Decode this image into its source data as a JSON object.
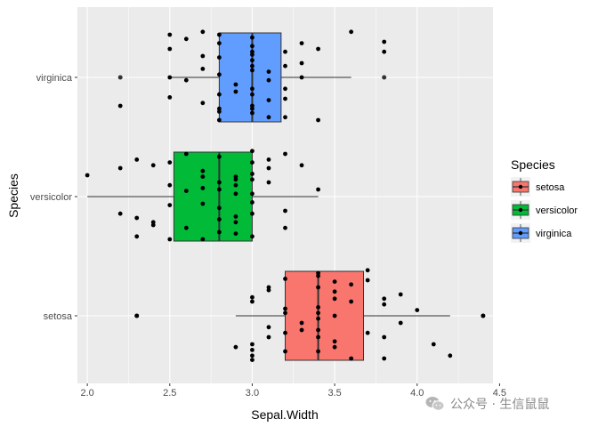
{
  "chart_data": {
    "type": "boxplot",
    "orientation": "horizontal",
    "title": "",
    "xlabel": "Sepal.Width",
    "ylabel": "Species",
    "xlim": [
      1.94,
      4.46
    ],
    "x_ticks": [
      2.0,
      2.5,
      3.0,
      3.5,
      4.0,
      4.5
    ],
    "x_tick_labels": [
      "2.0",
      "2.5",
      "3.0",
      "3.5",
      "4.0",
      "4.5"
    ],
    "categories": [
      "setosa",
      "versicolor",
      "virginica"
    ],
    "colors": {
      "setosa": "#F8766D",
      "versicolor": "#00BA38",
      "virginica": "#619CFF"
    },
    "boxes": [
      {
        "name": "setosa",
        "min": 2.9,
        "q1": 3.2,
        "median": 3.4,
        "q3": 3.675,
        "max": 4.2,
        "outliers": [
          2.3,
          4.4
        ]
      },
      {
        "name": "versicolor",
        "min": 2.0,
        "q1": 2.525,
        "median": 2.8,
        "q3": 3.0,
        "max": 3.4,
        "outliers": []
      },
      {
        "name": "virginica",
        "min": 2.5,
        "q1": 2.8,
        "median": 3.0,
        "q3": 3.175,
        "max": 3.6,
        "outliers": [
          2.2,
          3.8
        ]
      }
    ],
    "points": [
      {
        "s": 0,
        "x": 3.5,
        "j": 0.12
      },
      {
        "s": 0,
        "x": 3.0,
        "j": -0.28
      },
      {
        "s": 0,
        "x": 3.2,
        "j": 0.05
      },
      {
        "s": 0,
        "x": 3.1,
        "j": -0.15
      },
      {
        "s": 0,
        "x": 3.6,
        "j": 0.22
      },
      {
        "s": 0,
        "x": 3.9,
        "j": -0.05
      },
      {
        "s": 0,
        "x": 3.4,
        "j": 0.3
      },
      {
        "s": 0,
        "x": 3.4,
        "j": -0.1
      },
      {
        "s": 0,
        "x": 2.9,
        "j": -0.22
      },
      {
        "s": 0,
        "x": 3.1,
        "j": 0.18
      },
      {
        "s": 0,
        "x": 3.7,
        "j": 0.25
      },
      {
        "s": 0,
        "x": 3.4,
        "j": 0.02
      },
      {
        "s": 0,
        "x": 3.0,
        "j": 0.1
      },
      {
        "s": 0,
        "x": 3.0,
        "j": -0.31
      },
      {
        "s": 0,
        "x": 4.0,
        "j": 0.04
      },
      {
        "s": 0,
        "x": 4.4,
        "j": 0.0
      },
      {
        "s": 0,
        "x": 3.9,
        "j": 0.15
      },
      {
        "s": 0,
        "x": 3.5,
        "j": -0.18
      },
      {
        "s": 0,
        "x": 3.8,
        "j": -0.3
      },
      {
        "s": 0,
        "x": 3.8,
        "j": 0.08
      },
      {
        "s": 0,
        "x": 3.4,
        "j": -0.25
      },
      {
        "s": 0,
        "x": 3.7,
        "j": -0.12
      },
      {
        "s": 0,
        "x": 3.6,
        "j": 0.1
      },
      {
        "s": 0,
        "x": 3.3,
        "j": -0.05
      },
      {
        "s": 0,
        "x": 3.4,
        "j": 0.2
      },
      {
        "s": 0,
        "x": 3.0,
        "j": -0.2
      },
      {
        "s": 0,
        "x": 3.4,
        "j": 0.28
      },
      {
        "s": 0,
        "x": 3.5,
        "j": 0.0
      },
      {
        "s": 0,
        "x": 3.4,
        "j": -0.15
      },
      {
        "s": 0,
        "x": 3.2,
        "j": 0.26
      },
      {
        "s": 0,
        "x": 3.1,
        "j": -0.08
      },
      {
        "s": 0,
        "x": 3.4,
        "j": 0.06
      },
      {
        "s": 0,
        "x": 4.1,
        "j": -0.2
      },
      {
        "s": 0,
        "x": 4.2,
        "j": -0.28
      },
      {
        "s": 0,
        "x": 3.1,
        "j": 0.2
      },
      {
        "s": 0,
        "x": 3.2,
        "j": -0.25
      },
      {
        "s": 0,
        "x": 3.5,
        "j": 0.17
      },
      {
        "s": 0,
        "x": 3.6,
        "j": -0.3
      },
      {
        "s": 0,
        "x": 3.0,
        "j": 0.13
      },
      {
        "s": 0,
        "x": 3.4,
        "j": -0.02
      },
      {
        "s": 0,
        "x": 3.5,
        "j": 0.24
      },
      {
        "s": 0,
        "x": 2.3,
        "j": 0.0
      },
      {
        "s": 0,
        "x": 3.2,
        "j": -0.12
      },
      {
        "s": 0,
        "x": 3.5,
        "j": -0.22
      },
      {
        "s": 0,
        "x": 3.8,
        "j": 0.12
      },
      {
        "s": 0,
        "x": 3.0,
        "j": -0.24
      },
      {
        "s": 0,
        "x": 3.8,
        "j": -0.15
      },
      {
        "s": 0,
        "x": 3.2,
        "j": 0.02
      },
      {
        "s": 0,
        "x": 3.7,
        "j": 0.32
      },
      {
        "s": 0,
        "x": 3.3,
        "j": -0.1
      },
      {
        "s": 1,
        "x": 3.2,
        "j": 0.3
      },
      {
        "s": 1,
        "x": 3.2,
        "j": -0.1
      },
      {
        "s": 1,
        "x": 3.1,
        "j": 0.2
      },
      {
        "s": 1,
        "x": 2.3,
        "j": -0.15
      },
      {
        "s": 1,
        "x": 2.8,
        "j": 0.05
      },
      {
        "s": 1,
        "x": 2.8,
        "j": -0.25
      },
      {
        "s": 1,
        "x": 3.3,
        "j": 0.22
      },
      {
        "s": 1,
        "x": 2.4,
        "j": -0.2
      },
      {
        "s": 1,
        "x": 2.9,
        "j": 0.12
      },
      {
        "s": 1,
        "x": 2.7,
        "j": -0.05
      },
      {
        "s": 1,
        "x": 2.0,
        "j": 0.15
      },
      {
        "s": 1,
        "x": 3.0,
        "j": -0.28
      },
      {
        "s": 1,
        "x": 2.2,
        "j": 0.2
      },
      {
        "s": 1,
        "x": 2.9,
        "j": 0.08
      },
      {
        "s": 1,
        "x": 2.9,
        "j": -0.18
      },
      {
        "s": 1,
        "x": 3.1,
        "j": 0.26
      },
      {
        "s": 1,
        "x": 3.0,
        "j": 0.02
      },
      {
        "s": 1,
        "x": 2.7,
        "j": 0.18
      },
      {
        "s": 1,
        "x": 2.2,
        "j": -0.12
      },
      {
        "s": 1,
        "x": 2.5,
        "j": 0.24
      },
      {
        "s": 1,
        "x": 3.2,
        "j": -0.22
      },
      {
        "s": 1,
        "x": 2.8,
        "j": 0.1
      },
      {
        "s": 1,
        "x": 2.5,
        "j": -0.3
      },
      {
        "s": 1,
        "x": 2.8,
        "j": -0.08
      },
      {
        "s": 1,
        "x": 2.9,
        "j": 0.14
      },
      {
        "s": 1,
        "x": 3.0,
        "j": -0.12
      },
      {
        "s": 1,
        "x": 2.8,
        "j": 0.28
      },
      {
        "s": 1,
        "x": 3.0,
        "j": 0.16
      },
      {
        "s": 1,
        "x": 2.9,
        "j": -0.26
      },
      {
        "s": 1,
        "x": 2.6,
        "j": 0.04
      },
      {
        "s": 1,
        "x": 2.4,
        "j": 0.22
      },
      {
        "s": 1,
        "x": 2.4,
        "j": -0.18
      },
      {
        "s": 1,
        "x": 2.7,
        "j": -0.3
      },
      {
        "s": 1,
        "x": 2.7,
        "j": 0.06
      },
      {
        "s": 1,
        "x": 3.0,
        "j": 0.32
      },
      {
        "s": 1,
        "x": 3.4,
        "j": 0.05
      },
      {
        "s": 1,
        "x": 3.1,
        "j": 0.1
      },
      {
        "s": 1,
        "x": 2.3,
        "j": 0.26
      },
      {
        "s": 1,
        "x": 3.0,
        "j": -0.04
      },
      {
        "s": 1,
        "x": 2.5,
        "j": 0.08
      },
      {
        "s": 1,
        "x": 2.6,
        "j": -0.22
      },
      {
        "s": 1,
        "x": 3.0,
        "j": 0.12
      },
      {
        "s": 1,
        "x": 2.6,
        "j": 0.3
      },
      {
        "s": 1,
        "x": 2.3,
        "j": -0.28
      },
      {
        "s": 1,
        "x": 2.7,
        "j": 0.14
      },
      {
        "s": 1,
        "x": 3.0,
        "j": 0.24
      },
      {
        "s": 1,
        "x": 2.9,
        "j": -0.14
      },
      {
        "s": 1,
        "x": 2.9,
        "j": 0.02
      },
      {
        "s": 1,
        "x": 2.5,
        "j": -0.06
      },
      {
        "s": 1,
        "x": 2.8,
        "j": -0.16
      },
      {
        "s": 2,
        "x": 3.3,
        "j": 0.0
      },
      {
        "s": 2,
        "x": 2.7,
        "j": 0.15
      },
      {
        "s": 2,
        "x": 3.0,
        "j": 0.28
      },
      {
        "s": 2,
        "x": 2.9,
        "j": -0.1
      },
      {
        "s": 2,
        "x": 3.0,
        "j": -0.25
      },
      {
        "s": 2,
        "x": 3.0,
        "j": 0.05
      },
      {
        "s": 2,
        "x": 2.5,
        "j": 0.0
      },
      {
        "s": 2,
        "x": 2.9,
        "j": -0.05
      },
      {
        "s": 2,
        "x": 2.5,
        "j": 0.3
      },
      {
        "s": 2,
        "x": 3.6,
        "j": 0.32
      },
      {
        "s": 2,
        "x": 3.2,
        "j": -0.28
      },
      {
        "s": 2,
        "x": 2.7,
        "j": -0.18
      },
      {
        "s": 2,
        "x": 3.0,
        "j": 0.12
      },
      {
        "s": 2,
        "x": 2.5,
        "j": 0.2
      },
      {
        "s": 2,
        "x": 2.8,
        "j": -0.22
      },
      {
        "s": 2,
        "x": 3.2,
        "j": 0.18
      },
      {
        "s": 2,
        "x": 3.0,
        "j": -0.12
      },
      {
        "s": 2,
        "x": 3.8,
        "j": 0.25
      },
      {
        "s": 2,
        "x": 2.6,
        "j": -0.02
      },
      {
        "s": 2,
        "x": 2.2,
        "j": -0.2
      },
      {
        "s": 2,
        "x": 3.2,
        "j": 0.08
      },
      {
        "s": 2,
        "x": 2.8,
        "j": 0.24
      },
      {
        "s": 2,
        "x": 2.8,
        "j": -0.3
      },
      {
        "s": 2,
        "x": 2.7,
        "j": 0.06
      },
      {
        "s": 2,
        "x": 3.3,
        "j": 0.1
      },
      {
        "s": 2,
        "x": 3.2,
        "j": -0.15
      },
      {
        "s": 2,
        "x": 2.8,
        "j": 0.14
      },
      {
        "s": 2,
        "x": 3.0,
        "j": -0.08
      },
      {
        "s": 2,
        "x": 2.8,
        "j": 0.3
      },
      {
        "s": 2,
        "x": 3.0,
        "j": 0.22
      },
      {
        "s": 2,
        "x": 2.8,
        "j": -0.12
      },
      {
        "s": 2,
        "x": 3.8,
        "j": 0.18
      },
      {
        "s": 2,
        "x": 2.8,
        "j": 0.02
      },
      {
        "s": 2,
        "x": 2.8,
        "j": -0.24
      },
      {
        "s": 2,
        "x": 2.6,
        "j": 0.27
      },
      {
        "s": 2,
        "x": 3.0,
        "j": -0.2
      },
      {
        "s": 2,
        "x": 3.4,
        "j": 0.2
      },
      {
        "s": 2,
        "x": 3.1,
        "j": -0.02
      },
      {
        "s": 2,
        "x": 3.0,
        "j": 0.16
      },
      {
        "s": 2,
        "x": 3.1,
        "j": -0.28
      },
      {
        "s": 2,
        "x": 3.1,
        "j": 0.04
      },
      {
        "s": 2,
        "x": 3.1,
        "j": -0.16
      },
      {
        "s": 2,
        "x": 2.7,
        "j": 0.32
      },
      {
        "s": 2,
        "x": 3.2,
        "j": -0.08
      },
      {
        "s": 2,
        "x": 3.3,
        "j": 0.24
      },
      {
        "s": 2,
        "x": 3.0,
        "j": 0.08
      },
      {
        "s": 2,
        "x": 2.5,
        "j": -0.14
      },
      {
        "s": 2,
        "x": 3.0,
        "j": -0.22
      },
      {
        "s": 2,
        "x": 3.4,
        "j": -0.3
      },
      {
        "s": 2,
        "x": 3.0,
        "j": 0.18
      }
    ],
    "legend": {
      "title": "Species",
      "entries": [
        "setosa",
        "versicolor",
        "virginica"
      ],
      "position": "right"
    },
    "grid": true,
    "background": "#EBEBEB"
  },
  "watermark": {
    "text": "公众号 · 生信鼠鼠",
    "icon": "wechat-icon"
  }
}
